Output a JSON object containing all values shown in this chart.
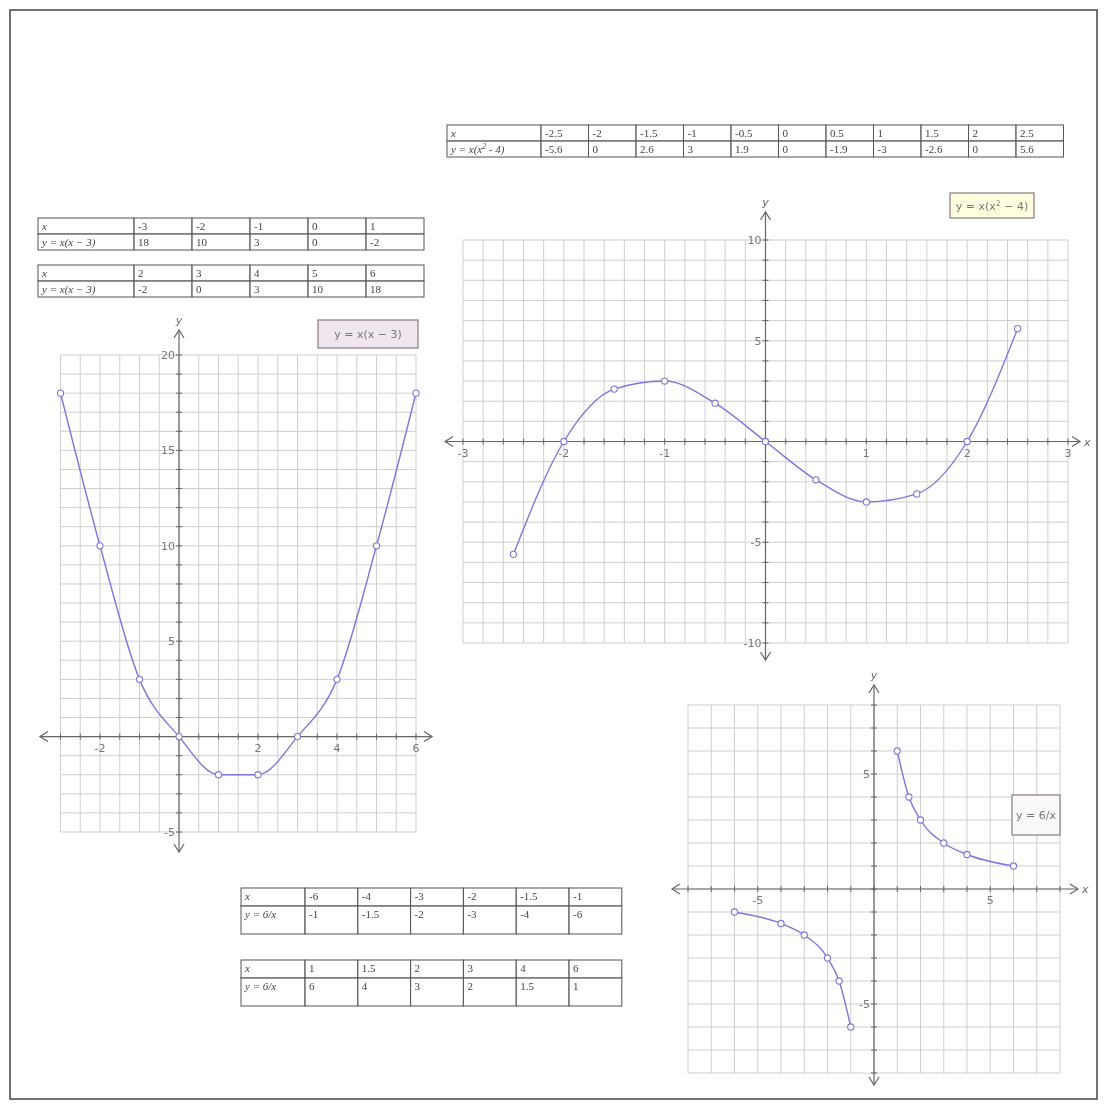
{
  "chart_data": [
    {
      "type": "line",
      "ylabel": "y",
      "xlim": [
        -3,
        6
      ],
      "ylim": [
        -5,
        20
      ],
      "xticks": [
        {
          "value": -3,
          "label": null
        },
        {
          "value": -2.5,
          "label": null
        },
        -2,
        {
          "value": -1.5,
          "label": null
        },
        {
          "value": -1,
          "label": null
        },
        {
          "value": -0.5,
          "label": null
        },
        {
          "value": 0,
          "label": null
        },
        {
          "value": 0.5,
          "label": null
        },
        {
          "value": 1,
          "label": null
        },
        {
          "value": 1.5,
          "label": null
        },
        2,
        {
          "value": 2.5,
          "label": null
        },
        {
          "value": 3,
          "label": null
        },
        {
          "value": 3.5,
          "label": null
        },
        4,
        {
          "value": 4.5,
          "label": null
        },
        {
          "value": 5,
          "label": null
        },
        {
          "value": 5.5,
          "label": null
        },
        6
      ],
      "yticks": [
        -5,
        {
          "value": -4,
          "label": null
        },
        {
          "value": -3,
          "label": null
        },
        {
          "value": -2,
          "label": null
        },
        {
          "value": -1,
          "label": null
        },
        {
          "value": 0,
          "label": null
        },
        {
          "value": 1,
          "label": null
        },
        {
          "value": 2,
          "label": null
        },
        {
          "value": 3,
          "label": null
        },
        {
          "value": 4,
          "label": null
        },
        5,
        {
          "value": 6,
          "label": null
        },
        {
          "value": 7,
          "label": null
        },
        {
          "value": 8,
          "label": null
        },
        {
          "value": 9,
          "label": null
        },
        10,
        {
          "value": 11,
          "label": null
        },
        {
          "value": 12,
          "label": null
        },
        {
          "value": 13,
          "label": null
        },
        {
          "value": 14,
          "label": null
        },
        15,
        {
          "value": 16,
          "label": null
        },
        {
          "value": 17,
          "label": null
        },
        {
          "value": 18,
          "label": null
        },
        {
          "value": 19,
          "label": null
        },
        20
      ],
      "grid": true,
      "legend": "top right",
      "marker": "circle",
      "annotations": [
        "x",
        "-3",
        "-2",
        "-1",
        "0",
        "1",
        "y = x(x − 3)",
        "18",
        "10",
        "3",
        "0",
        "-2",
        "x",
        "2",
        "3",
        "4",
        "5",
        "6",
        "y = x(x − 3)",
        "-2",
        "0",
        "3",
        "10",
        "18"
      ],
      "series": [
        {
          "name": "y = x(x − 3)",
          "color": "#7a78e0",
          "x": [
            -3,
            -2,
            -1,
            0,
            1,
            2,
            3,
            4,
            5,
            6
          ],
          "values": [
            18,
            10,
            3,
            0,
            -2,
            -2,
            0,
            3,
            10,
            18
          ]
        }
      ]
    },
    {
      "type": "line",
      "xlabel": "x",
      "ylabel": "y",
      "xlim": [
        -3,
        3
      ],
      "ylim": [
        -10,
        10
      ],
      "xticks": [
        -3,
        {
          "value": -2.8,
          "label": null
        },
        {
          "value": -2.6,
          "label": null
        },
        {
          "value": -2.4,
          "label": null
        },
        {
          "value": -2.2,
          "label": null
        },
        -2,
        {
          "value": -1.8,
          "label": null
        },
        {
          "value": -1.6,
          "label": null
        },
        {
          "value": -1.4,
          "label": null
        },
        {
          "value": -1.2,
          "label": null
        },
        -1,
        {
          "value": -0.8,
          "label": null
        },
        {
          "value": -0.6,
          "label": null
        },
        {
          "value": -0.4,
          "label": null
        },
        {
          "value": -0.2,
          "label": null
        },
        {
          "value": 0,
          "label": null
        },
        {
          "value": 0.2,
          "label": null
        },
        {
          "value": 0.4,
          "label": null
        },
        {
          "value": 0.6,
          "label": null
        },
        {
          "value": 0.8,
          "label": null
        },
        1,
        {
          "value": 1.2,
          "label": null
        },
        {
          "value": 1.4,
          "label": null
        },
        {
          "value": 1.6,
          "label": null
        },
        {
          "value": 1.8,
          "label": null
        },
        2,
        {
          "value": 2.2,
          "label": null
        },
        {
          "value": 2.4,
          "label": null
        },
        {
          "value": 2.6,
          "label": null
        },
        {
          "value": 2.8,
          "label": null
        },
        3
      ],
      "yticks": [
        -10,
        {
          "value": -9,
          "label": null
        },
        {
          "value": -8,
          "label": null
        },
        {
          "value": -7,
          "label": null
        },
        {
          "value": -6,
          "label": null
        },
        -5,
        {
          "value": -4,
          "label": null
        },
        {
          "value": -3,
          "label": null
        },
        {
          "value": -2,
          "label": null
        },
        {
          "value": -1,
          "label": null
        },
        {
          "value": 0,
          "label": null
        },
        {
          "value": 1,
          "label": null
        },
        {
          "value": 2,
          "label": null
        },
        {
          "value": 3,
          "label": null
        },
        {
          "value": 4,
          "label": null
        },
        5,
        {
          "value": 6,
          "label": null
        },
        {
          "value": 7,
          "label": null
        },
        {
          "value": 8,
          "label": null
        },
        {
          "value": 9,
          "label": null
        },
        10
      ],
      "grid": true,
      "legend": "top right",
      "marker": "circle",
      "annotations": [
        "x",
        "-2.5",
        "-2",
        "-1.5",
        "-1",
        "-0.5",
        "0",
        "0.5",
        "1",
        "1.5",
        "2",
        "2.5",
        "y = x(x$^{2}$ - 4)",
        "-5.6",
        "0",
        "2.6",
        "3",
        "1.9",
        "0",
        "-1.9",
        "-3",
        "-2.6",
        "0",
        "5.6"
      ],
      "series": [
        {
          "name": "y = x(x$^{2}$ − 4)",
          "color": "#7a78e0",
          "x": [
            -2.5,
            -2,
            -1.5,
            -1,
            -0.5,
            0,
            0.5,
            1,
            1.5,
            2,
            2.5
          ],
          "values": [
            -5.6,
            0,
            2.6,
            3,
            1.9,
            0,
            -1.9,
            -3,
            -2.6,
            0,
            5.6
          ]
        }
      ]
    },
    {
      "type": "line",
      "xlabel": "x",
      "ylabel": "y",
      "xlim": [
        -8,
        8
      ],
      "ylim": [
        -8,
        8
      ],
      "xticks": [
        {
          "value": -8,
          "label": null
        },
        {
          "value": -7,
          "label": null
        },
        {
          "value": -6,
          "label": null
        },
        -5,
        {
          "value": -4,
          "label": null
        },
        {
          "value": -3,
          "label": null
        },
        {
          "value": -2,
          "label": null
        },
        {
          "value": -1,
          "label": null
        },
        {
          "value": 0,
          "label": null
        },
        {
          "value": 1,
          "label": null
        },
        {
          "value": 2,
          "label": null
        },
        {
          "value": 3,
          "label": null
        },
        {
          "value": 4,
          "label": null
        },
        5,
        {
          "value": 6,
          "label": null
        },
        {
          "value": 7,
          "label": null
        },
        {
          "value": 8,
          "label": null
        }
      ],
      "yticks": [
        {
          "value": -8,
          "label": null
        },
        {
          "value": -7,
          "label": null
        },
        {
          "value": -6,
          "label": null
        },
        -5,
        {
          "value": -4,
          "label": null
        },
        {
          "value": -3,
          "label": null
        },
        {
          "value": -2,
          "label": null
        },
        {
          "value": -1,
          "label": null
        },
        {
          "value": 0,
          "label": null
        },
        {
          "value": 1,
          "label": null
        },
        {
          "value": 2,
          "label": null
        },
        {
          "value": 3,
          "label": null
        },
        {
          "value": 4,
          "label": null
        },
        5,
        {
          "value": 6,
          "label": null
        },
        {
          "value": 7,
          "label": null
        },
        {
          "value": 8,
          "label": null
        }
      ],
      "grid": true,
      "legend": "right",
      "marker": "circle",
      "annotations": [
        "x",
        "-6",
        "-4",
        "-3",
        "-2",
        "-1.5",
        "-1",
        "y = 6/x",
        "-1",
        "-1.5",
        "-2",
        "-3",
        "-4",
        "-6",
        "x",
        "1",
        "1.5",
        "2",
        "3",
        "4",
        "6",
        "y = 6/x",
        "6",
        "4",
        "3",
        "2",
        "1.5",
        "1"
      ],
      "series": [
        {
          "name": "y = 6/x",
          "color": "#7a78e0",
          "x": [
            -6,
            -4,
            -3,
            -2,
            -1.5,
            -1,
            0,
            1,
            1.5,
            2,
            3,
            4,
            6
          ],
          "values": [
            -1,
            -1.5,
            -2,
            -3,
            -4,
            -6,
            null,
            6,
            4,
            3,
            2,
            1.5,
            1
          ]
        }
      ]
    }
  ]
}
